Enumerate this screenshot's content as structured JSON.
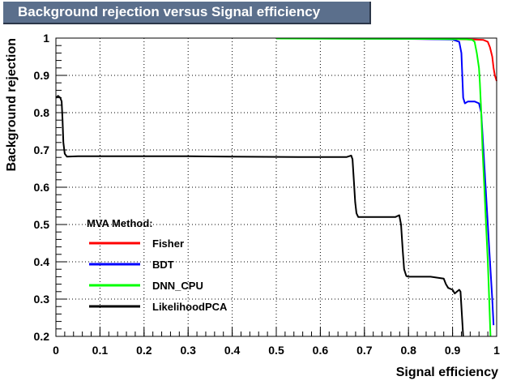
{
  "chart_data": {
    "type": "line",
    "title": "Background rejection versus Signal efficiency",
    "xlabel": "Signal efficiency",
    "ylabel": "Background rejection",
    "xlim": [
      0,
      1
    ],
    "ylim": [
      0.2,
      1
    ],
    "x_ticks": [
      "0",
      "0.1",
      "0.2",
      "0.3",
      "0.4",
      "0.5",
      "0.6",
      "0.7",
      "0.8",
      "0.9",
      "1"
    ],
    "y_ticks": [
      "0.2",
      "0.3",
      "0.4",
      "0.5",
      "0.6",
      "0.7",
      "0.8",
      "0.9",
      "1"
    ],
    "grid": true,
    "legend": {
      "title": "MVA Method:",
      "placement": "bottom-left"
    },
    "series": [
      {
        "name": "Fisher",
        "color": "#ff0000",
        "points": [
          [
            0.6,
            0.999
          ],
          [
            0.8,
            0.998
          ],
          [
            0.9,
            0.997
          ],
          [
            0.95,
            0.996
          ],
          [
            0.97,
            0.995
          ],
          [
            0.98,
            0.99
          ],
          [
            0.985,
            0.975
          ],
          [
            0.99,
            0.95
          ],
          [
            0.993,
            0.92
          ],
          [
            0.996,
            0.9
          ],
          [
            1.0,
            0.885
          ]
        ]
      },
      {
        "name": "BDT",
        "color": "#0000ff",
        "points": [
          [
            0.55,
            0.999
          ],
          [
            0.8,
            0.998
          ],
          [
            0.9,
            0.996
          ],
          [
            0.915,
            0.99
          ],
          [
            0.92,
            0.96
          ],
          [
            0.922,
            0.9
          ],
          [
            0.924,
            0.84
          ],
          [
            0.928,
            0.825
          ],
          [
            0.935,
            0.83
          ],
          [
            0.95,
            0.83
          ],
          [
            0.96,
            0.825
          ],
          [
            0.965,
            0.8
          ],
          [
            0.97,
            0.7
          ],
          [
            0.975,
            0.6
          ],
          [
            0.98,
            0.5
          ],
          [
            0.985,
            0.4
          ],
          [
            0.99,
            0.3
          ],
          [
            0.993,
            0.23
          ]
        ]
      },
      {
        "name": "DNN_CPU",
        "color": "#00ff00",
        "points": [
          [
            0.5,
            0.999
          ],
          [
            0.8,
            0.998
          ],
          [
            0.93,
            0.997
          ],
          [
            0.945,
            0.995
          ],
          [
            0.95,
            0.99
          ],
          [
            0.955,
            0.96
          ],
          [
            0.96,
            0.92
          ],
          [
            0.962,
            0.88
          ],
          [
            0.965,
            0.8
          ],
          [
            0.968,
            0.7
          ],
          [
            0.972,
            0.6
          ],
          [
            0.976,
            0.5
          ],
          [
            0.98,
            0.4
          ],
          [
            0.983,
            0.3
          ],
          [
            0.986,
            0.2
          ]
        ]
      },
      {
        "name": "LikelihoodPCA",
        "color": "#000000",
        "points": [
          [
            0.0,
            0.84
          ],
          [
            0.005,
            0.845
          ],
          [
            0.01,
            0.84
          ],
          [
            0.013,
            0.83
          ],
          [
            0.015,
            0.78
          ],
          [
            0.017,
            0.72
          ],
          [
            0.02,
            0.69
          ],
          [
            0.025,
            0.682
          ],
          [
            0.05,
            0.683
          ],
          [
            0.3,
            0.683
          ],
          [
            0.4,
            0.682
          ],
          [
            0.55,
            0.681
          ],
          [
            0.66,
            0.681
          ],
          [
            0.67,
            0.685
          ],
          [
            0.673,
            0.675
          ],
          [
            0.676,
            0.62
          ],
          [
            0.679,
            0.56
          ],
          [
            0.682,
            0.53
          ],
          [
            0.686,
            0.52
          ],
          [
            0.7,
            0.52
          ],
          [
            0.77,
            0.52
          ],
          [
            0.779,
            0.525
          ],
          [
            0.783,
            0.5
          ],
          [
            0.787,
            0.43
          ],
          [
            0.79,
            0.38
          ],
          [
            0.795,
            0.362
          ],
          [
            0.8,
            0.36
          ],
          [
            0.85,
            0.36
          ],
          [
            0.88,
            0.355
          ],
          [
            0.885,
            0.34
          ],
          [
            0.89,
            0.33
          ],
          [
            0.9,
            0.325
          ],
          [
            0.905,
            0.315
          ],
          [
            0.91,
            0.32
          ],
          [
            0.915,
            0.325
          ],
          [
            0.918,
            0.32
          ],
          [
            0.92,
            0.28
          ],
          [
            0.922,
            0.24
          ],
          [
            0.924,
            0.2
          ]
        ]
      }
    ]
  }
}
